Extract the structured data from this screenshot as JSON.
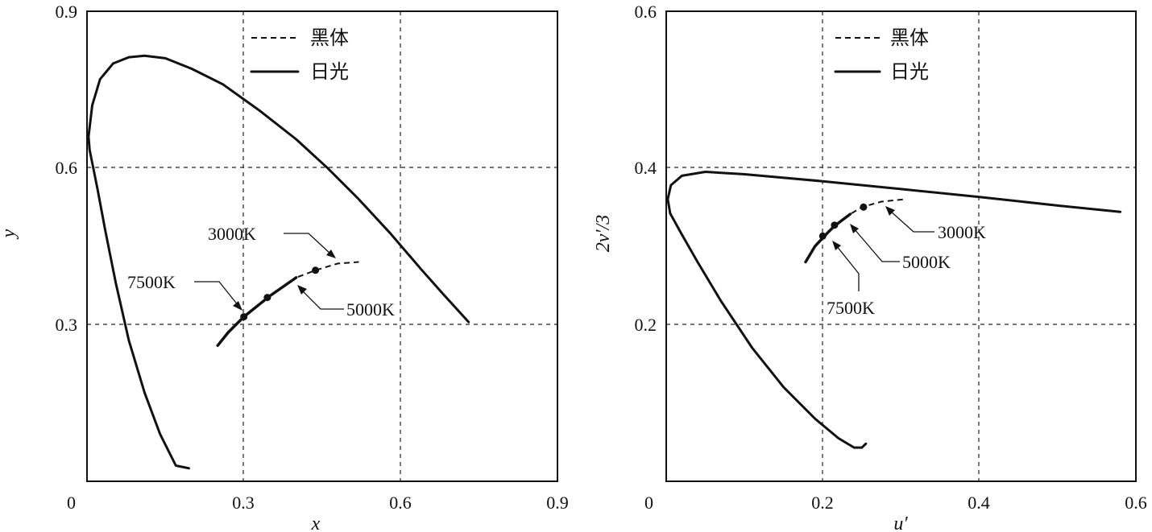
{
  "legend": {
    "blackbody_label": "黑体",
    "daylight_label": "日光"
  },
  "chart_data": [
    {
      "type": "line",
      "title": "",
      "xlabel": "x",
      "ylabel": "y",
      "xlim": [
        0,
        0.9
      ],
      "ylim": [
        0,
        0.9
      ],
      "xticks": [
        "0",
        "0.3",
        "0.6",
        "0.9"
      ],
      "yticks": [
        "0.3",
        "0.6",
        "0.9"
      ],
      "grid": true,
      "legend_position": "top-center",
      "series": [
        {
          "name": "日光",
          "style": "solid",
          "points": [
            [
              0.195,
              0.025
            ],
            [
              0.17,
              0.03
            ],
            [
              0.14,
              0.09
            ],
            [
              0.11,
              0.17
            ],
            [
              0.08,
              0.27
            ],
            [
              0.055,
              0.38
            ],
            [
              0.035,
              0.48
            ],
            [
              0.02,
              0.56
            ],
            [
              0.005,
              0.635
            ],
            [
              0.003,
              0.66
            ],
            [
              0.01,
              0.72
            ],
            [
              0.025,
              0.77
            ],
            [
              0.05,
              0.8
            ],
            [
              0.08,
              0.812
            ],
            [
              0.11,
              0.815
            ],
            [
              0.15,
              0.81
            ],
            [
              0.2,
              0.79
            ],
            [
              0.26,
              0.76
            ],
            [
              0.33,
              0.71
            ],
            [
              0.4,
              0.655
            ],
            [
              0.46,
              0.6
            ],
            [
              0.52,
              0.54
            ],
            [
              0.58,
              0.475
            ],
            [
              0.64,
              0.405
            ],
            [
              0.68,
              0.36
            ],
            [
              0.73,
              0.305
            ]
          ]
        },
        {
          "name": "黑体",
          "style": "dashed",
          "points": [
            [
              0.25,
              0.26
            ],
            [
              0.27,
              0.285
            ],
            [
              0.3,
              0.315
            ],
            [
              0.35,
              0.355
            ],
            [
              0.4,
              0.39
            ],
            [
              0.44,
              0.405
            ],
            [
              0.48,
              0.417
            ],
            [
              0.52,
              0.42
            ]
          ]
        }
      ],
      "marked_points": [
        {
          "label": "7500K",
          "x": 0.3,
          "y": 0.315
        },
        {
          "label": "5000K",
          "x": 0.345,
          "y": 0.352
        },
        {
          "label": "3000K",
          "x": 0.437,
          "y": 0.404
        }
      ]
    },
    {
      "type": "line",
      "title": "",
      "xlabel": "u′",
      "ylabel": "2v′/3",
      "xlim": [
        0,
        0.6
      ],
      "ylim": [
        0,
        0.6
      ],
      "xticks": [
        "0",
        "0.2",
        "0.4",
        "0.6"
      ],
      "yticks": [
        "0.2",
        "0.4",
        "0.6"
      ],
      "grid": true,
      "legend_position": "top-center",
      "series": [
        {
          "name": "日光",
          "style": "solid",
          "points": [
            [
              0.255,
              0.048
            ],
            [
              0.25,
              0.043
            ],
            [
              0.24,
              0.043
            ],
            [
              0.22,
              0.055
            ],
            [
              0.19,
              0.08
            ],
            [
              0.15,
              0.12
            ],
            [
              0.11,
              0.17
            ],
            [
              0.07,
              0.23
            ],
            [
              0.04,
              0.28
            ],
            [
              0.02,
              0.315
            ],
            [
              0.005,
              0.342
            ],
            [
              0.002,
              0.36
            ],
            [
              0.006,
              0.378
            ],
            [
              0.02,
              0.39
            ],
            [
              0.05,
              0.395
            ],
            [
              0.1,
              0.392
            ],
            [
              0.2,
              0.383
            ],
            [
              0.3,
              0.373
            ],
            [
              0.4,
              0.363
            ],
            [
              0.5,
              0.352
            ],
            [
              0.58,
              0.344
            ]
          ]
        },
        {
          "name": "黑体",
          "style": "dashed",
          "points": [
            [
              0.178,
              0.28
            ],
            [
              0.19,
              0.3
            ],
            [
              0.205,
              0.316
            ],
            [
              0.215,
              0.326
            ],
            [
              0.235,
              0.341
            ],
            [
              0.25,
              0.35
            ],
            [
              0.275,
              0.357
            ],
            [
              0.305,
              0.36
            ]
          ]
        }
      ],
      "marked_points": [
        {
          "label": "7500K",
          "x": 0.2,
          "y": 0.313
        },
        {
          "label": "5000K",
          "x": 0.215,
          "y": 0.327
        },
        {
          "label": "3000K",
          "x": 0.252,
          "y": 0.35
        }
      ]
    }
  ]
}
